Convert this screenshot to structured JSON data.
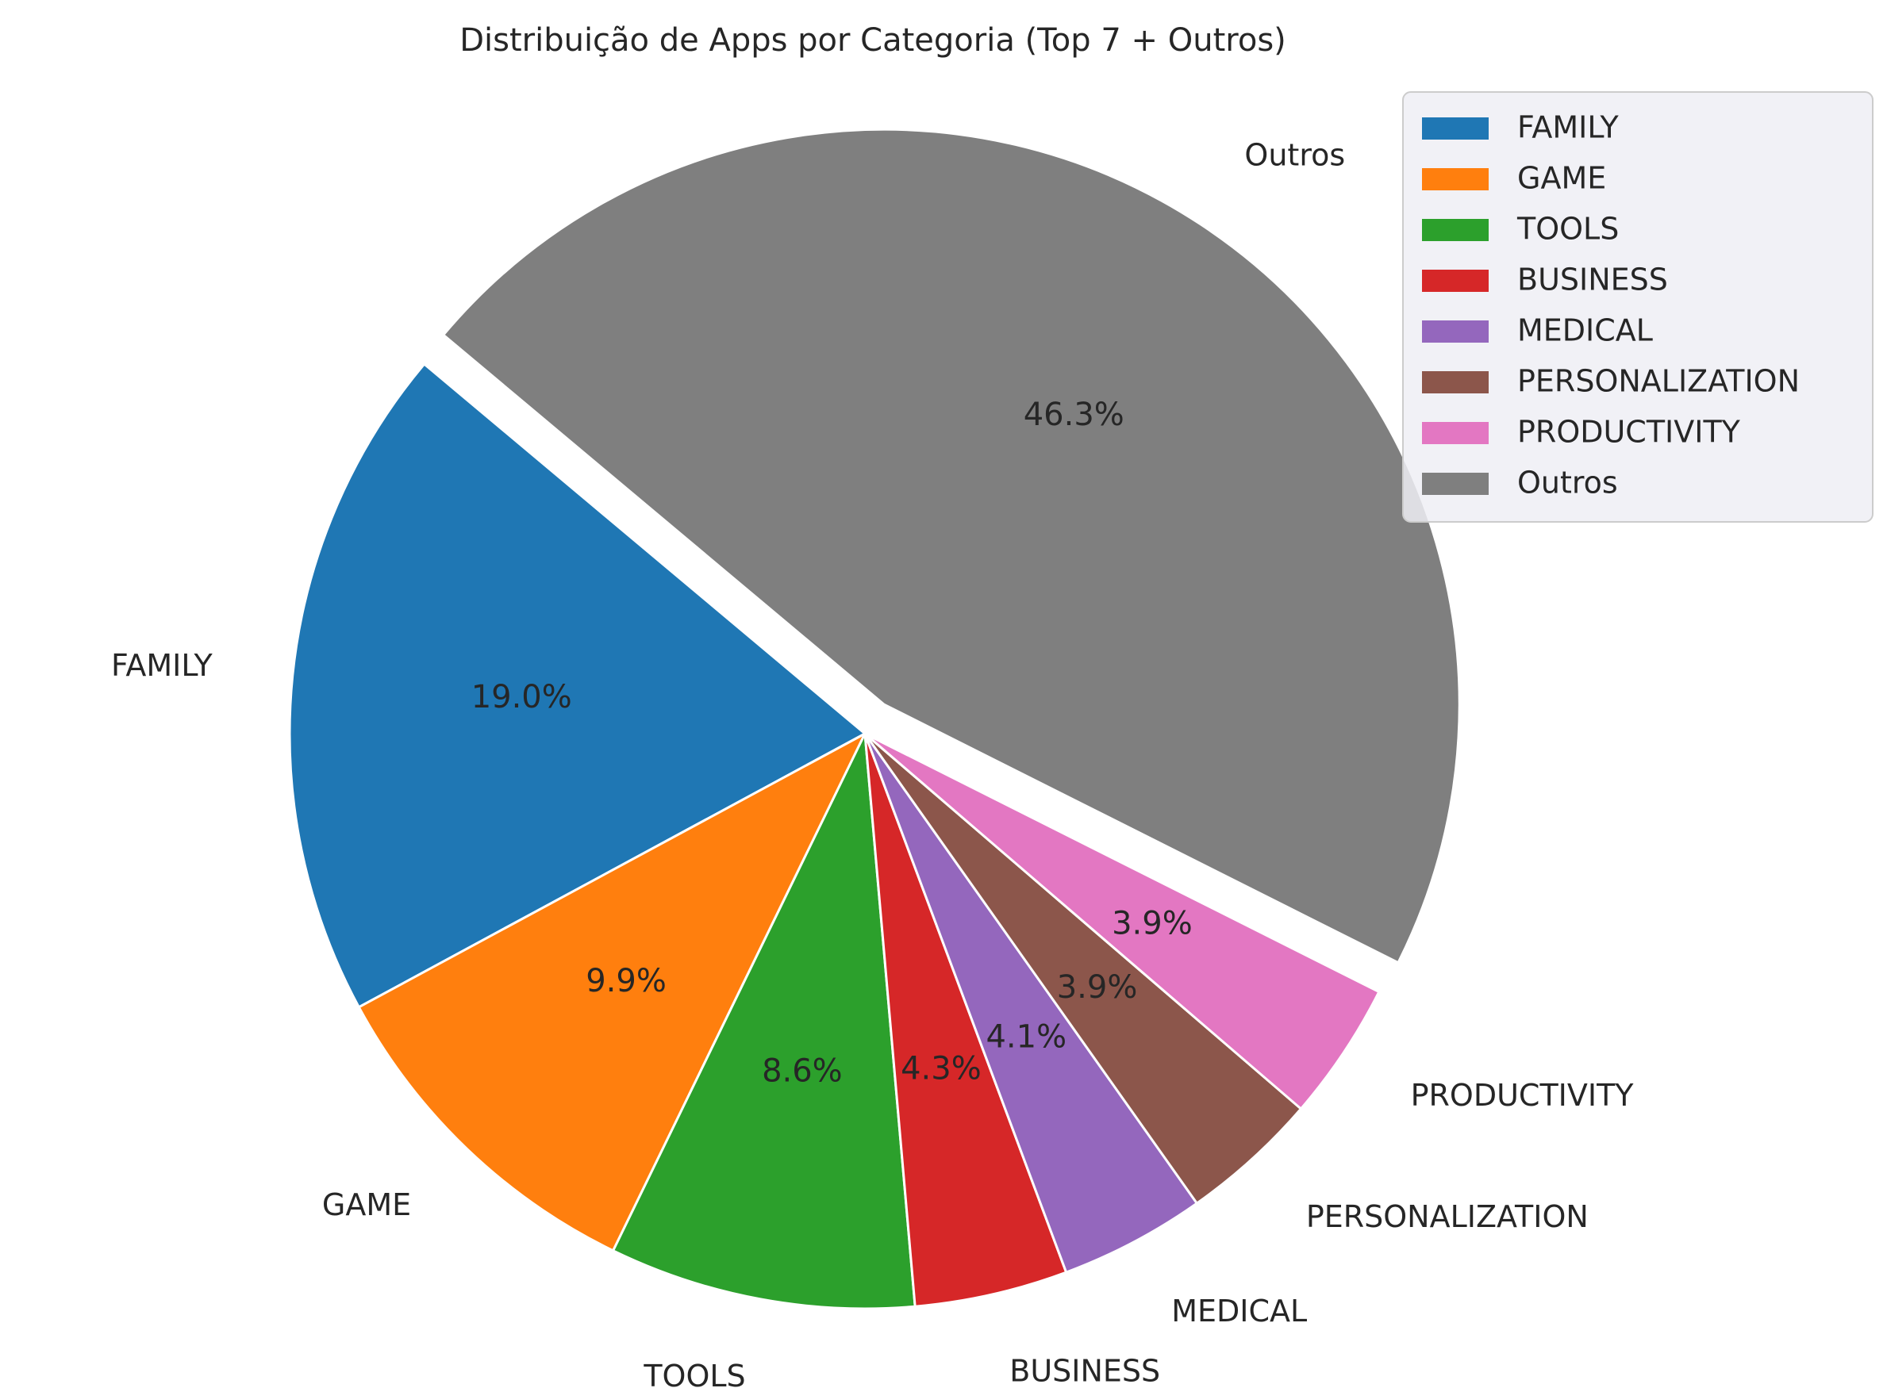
{
  "chart_data": {
    "type": "pie",
    "title": "Distribuição de Apps por Categoria (Top 7 + Outros)",
    "categories": [
      "FAMILY",
      "GAME",
      "TOOLS",
      "BUSINESS",
      "MEDICAL",
      "PERSONALIZATION",
      "PRODUCTIVITY",
      "Outros"
    ],
    "values": [
      19.0,
      9.9,
      8.6,
      4.3,
      4.1,
      3.9,
      3.9,
      46.3
    ],
    "value_labels": [
      "19.0%",
      "9.9%",
      "8.6%",
      "4.3%",
      "4.1%",
      "3.9%",
      "3.9%",
      "46.3%"
    ],
    "colors": [
      "#1f77b4",
      "#ff7f0e",
      "#2ca02c",
      "#d62728",
      "#9467bd",
      "#8c564b",
      "#e377c2",
      "#7f7f7f"
    ],
    "exploded": [
      "Outros"
    ],
    "start_angle_deg": 140,
    "direction": "counterclockwise",
    "legend": {
      "position": "top-right",
      "entries": [
        "FAMILY",
        "GAME",
        "TOOLS",
        "BUSINESS",
        "MEDICAL",
        "PERSONALIZATION",
        "PRODUCTIVITY",
        "Outros"
      ]
    }
  }
}
